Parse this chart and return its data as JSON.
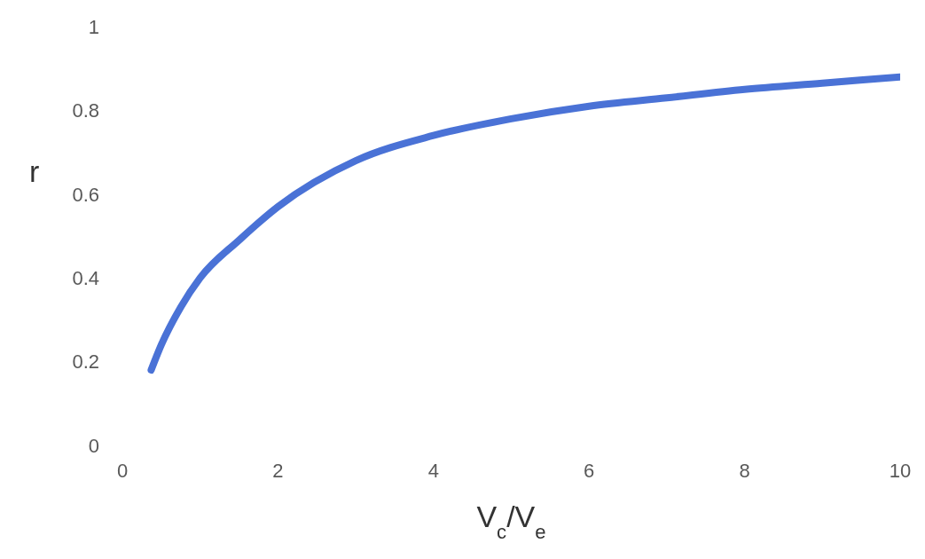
{
  "chart_data": {
    "type": "line",
    "xlabel": "V$_{c}$/V$_{e}$",
    "ylabel": "r",
    "x": [
      0.37,
      0.5,
      0.75,
      1,
      1.5,
      2,
      3,
      4,
      5,
      6,
      7,
      8,
      9,
      10
    ],
    "series": [
      {
        "color": "#4a72d6",
        "values": [
          0.18,
          0.24,
          0.33,
          0.4,
          0.49,
          0.57,
          0.68,
          0.74,
          0.78,
          0.81,
          0.83,
          0.85,
          0.865,
          0.88
        ]
      }
    ],
    "xlim": [
      0,
      10
    ],
    "xticks": [
      0,
      2,
      4,
      6,
      8,
      10
    ],
    "ylim": [
      0,
      1
    ],
    "yticks": [
      0,
      0.2,
      0.4,
      0.6,
      0.8,
      1
    ],
    "grid": false,
    "legend": false,
    "marker": "none",
    "line_style": "solid"
  }
}
